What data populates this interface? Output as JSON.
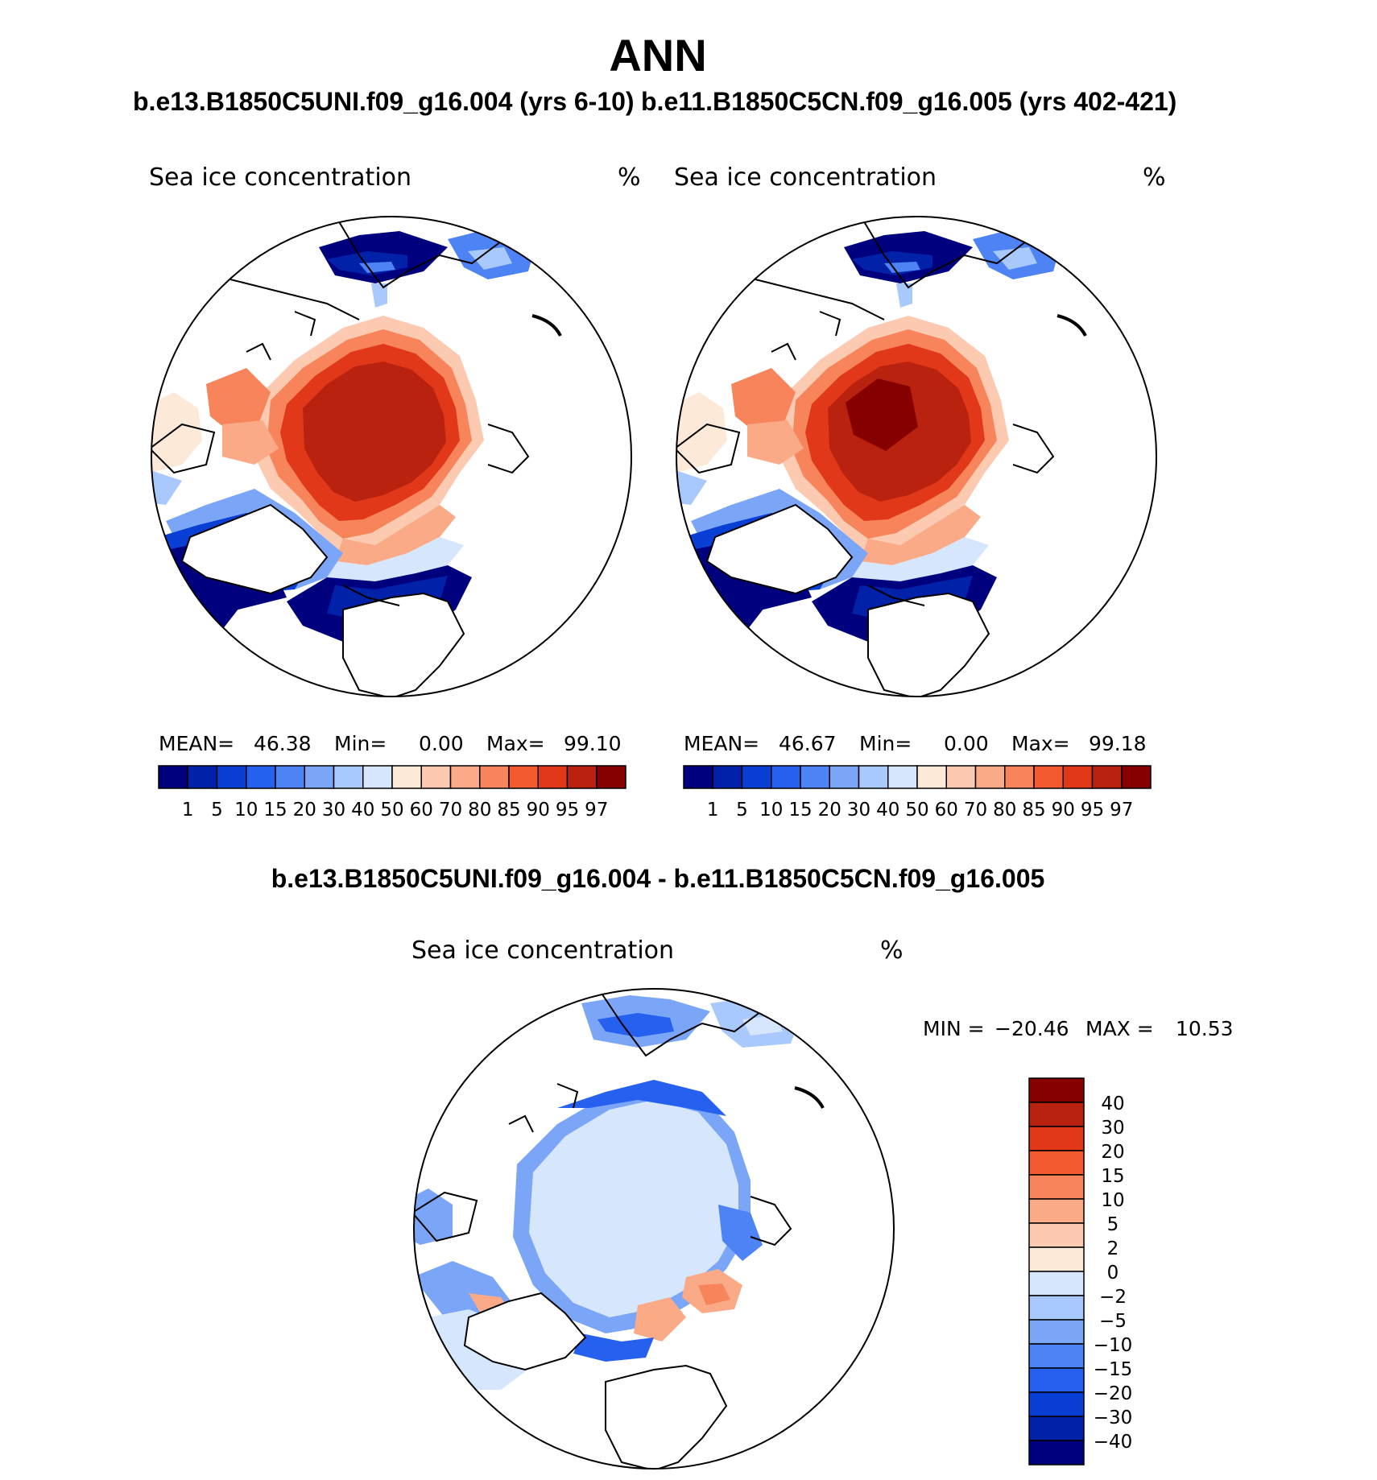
{
  "title": "ANN",
  "cases": {
    "left_label": "b.e13.B1850C5UNI.f09_g16.004 (yrs 6-10)",
    "right_label": "b.e11.B1850C5CN.f09_g16.005 (yrs 402-421)",
    "diff_label": "b.e13.B1850C5UNI.f09_g16.004 - b.e11.B1850C5CN.f09_g16.005"
  },
  "panels": [
    {
      "variable": "Sea ice concentration",
      "units": "%",
      "stats": {
        "mean_label": "MEAN=",
        "mean": "46.38",
        "min_label": "Min=",
        "min": "0.00",
        "max_label": "Max=",
        "max": "99.10"
      }
    },
    {
      "variable": "Sea ice concentration",
      "units": "%",
      "stats": {
        "mean_label": "MEAN=",
        "mean": "46.67",
        "min_label": "Min=",
        "min": "0.00",
        "max_label": "Max=",
        "max": "99.18"
      }
    }
  ],
  "diff_panel": {
    "variable": "Sea ice concentration",
    "units": "%",
    "min_label": "MIN =",
    "min": "−20.46",
    "max_label": "MAX =",
    "max": "10.53"
  },
  "colorbars": {
    "absolute": {
      "colors": [
        "#00007f",
        "#0021a8",
        "#0a3fd6",
        "#2660ee",
        "#4d83f5",
        "#7ba6f8",
        "#a9c8fb",
        "#d6e6fc",
        "#fde9d8",
        "#fccab1",
        "#fbaa87",
        "#f7845a",
        "#f35a2f",
        "#e2381a",
        "#b9220f",
        "#870000"
      ],
      "labels": [
        "1",
        "5",
        "10",
        "15",
        "20",
        "30",
        "40",
        "50",
        "60",
        "70",
        "80",
        "85",
        "90",
        "95",
        "97"
      ]
    },
    "difference": {
      "colors": [
        "#870000",
        "#b9220f",
        "#e2381a",
        "#f35a2f",
        "#f7845a",
        "#fbaa87",
        "#fccab1",
        "#fde9d8",
        "#d6e6fc",
        "#a9c8fb",
        "#7ba6f8",
        "#4d83f5",
        "#2660ee",
        "#0a3fd6",
        "#0021a8",
        "#00007f"
      ],
      "labels": [
        "40",
        "30",
        "20",
        "15",
        "10",
        "5",
        "2",
        "0",
        "−2",
        "−5",
        "−10",
        "−15",
        "−20",
        "−30",
        "−40"
      ]
    }
  }
}
